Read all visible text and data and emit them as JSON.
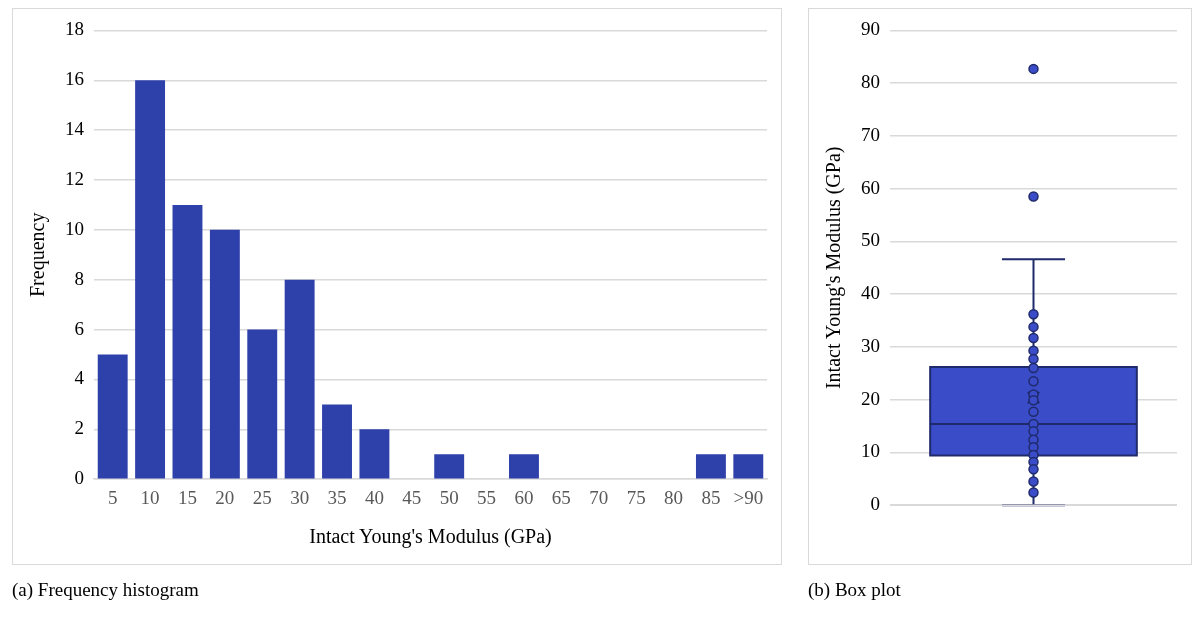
{
  "chart_data": [
    {
      "type": "bar",
      "title": "(a) Frequency histogram",
      "xlabel": "Intact Young's Modulus (GPa)",
      "ylabel": "Frequency",
      "categories": [
        "5",
        "10",
        "15",
        "20",
        "25",
        "30",
        "35",
        "40",
        "45",
        "50",
        "55",
        "60",
        "65",
        "70",
        "75",
        "80",
        "85",
        ">90"
      ],
      "values": [
        5,
        16,
        11,
        10,
        6,
        8,
        3,
        2,
        0,
        1,
        0,
        1,
        0,
        0,
        0,
        0,
        1,
        1
      ],
      "color": "#2e40aa",
      "ylim": [
        0,
        18
      ],
      "yticks": [
        0,
        2,
        4,
        6,
        8,
        10,
        12,
        14,
        16,
        18
      ],
      "grid": "y"
    },
    {
      "type": "box",
      "title": "(b) Box plot",
      "ylabel": "Intact Young's Modulus (GPa)",
      "categories": [
        null
      ],
      "color": "#3a4cc8",
      "boxes": [
        {
          "low": 0,
          "q1": 9.4,
          "median": 15.4,
          "q3": 26.2,
          "high": 46.6,
          "mean": 20.4,
          "outliers": [
            58.5,
            82.7
          ]
        }
      ],
      "series": [
        {
          "type": "scatter",
          "color": "#3a4cc8",
          "x": [
            null,
            null,
            null,
            null,
            null,
            null,
            null,
            null,
            null,
            null,
            null,
            null,
            null,
            null,
            null,
            null,
            null,
            null,
            null
          ],
          "values": [
            36.2,
            33.8,
            31.7,
            29.3,
            27.7,
            26.0,
            23.5,
            21.0,
            19.9,
            17.7,
            15.4,
            14.0,
            12.4,
            11.0,
            9.5,
            8.2,
            6.8,
            4.5,
            2.4
          ]
        }
      ],
      "ylim": [
        0,
        90
      ],
      "yticks": [
        0,
        10,
        20,
        30,
        40,
        50,
        60,
        70,
        80,
        90
      ],
      "grid": "y",
      "marker": "circle"
    }
  ]
}
